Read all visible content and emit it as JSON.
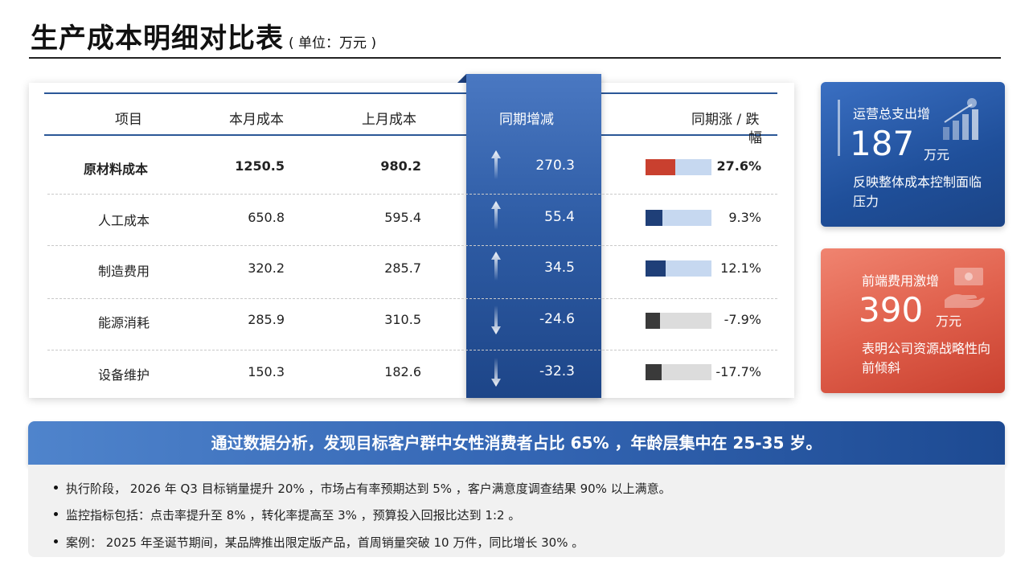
{
  "header": {
    "title": "生产成本明细对比表",
    "unit": "( 单位：万元 )"
  },
  "table": {
    "columns": [
      "项目",
      "本月成本",
      "上月成本",
      "同期增减",
      "同期涨 / 跌",
      "幅"
    ],
    "rows": [
      {
        "item": "原材料成本",
        "current": "1250.5",
        "previous": "980.2",
        "change": "270.3",
        "pct": "27.6%",
        "ratio": 0.45,
        "direction": "up",
        "bar_color": "#c9402f",
        "bold": true
      },
      {
        "item": "人工成本",
        "current": "650.8",
        "previous": "595.4",
        "change": "55.4",
        "pct": "9.3%",
        "ratio": 0.25,
        "direction": "up",
        "bar_color": "#1f3f78",
        "bold": false
      },
      {
        "item": "制造费用",
        "current": "320.2",
        "previous": "285.7",
        "change": "34.5",
        "pct": "12.1%",
        "ratio": 0.31,
        "direction": "up",
        "bar_color": "#1f3f78",
        "bold": false
      },
      {
        "item": "能源消耗",
        "current": "285.9",
        "previous": "310.5",
        "change": "-24.6",
        "pct": "-7.9%",
        "ratio": 0.22,
        "direction": "down",
        "bar_color": "#3a3a3a",
        "bold": false
      },
      {
        "item": "设备维护",
        "current": "150.3",
        "previous": "182.6",
        "change": "-32.3",
        "pct": "-17.7%",
        "ratio": 0.24,
        "direction": "down",
        "bar_color": "#3a3a3a",
        "bold": false
      }
    ],
    "colors": {
      "bar_track_positive": "#c6d8f0",
      "bar_track_negative": "#dcdcdc",
      "accent_blue": "#2b5797"
    }
  },
  "cards": [
    {
      "label": "运营总支出增",
      "number": "187",
      "unit": "万元",
      "desc": "反映整体成本控制面临压力",
      "icon": "growth-chart-icon"
    },
    {
      "label": "前端费用激增",
      "number": "390",
      "unit": "万元",
      "desc": "表明公司资源战略性向前倾斜",
      "icon": "hand-money-icon"
    }
  ],
  "banner": {
    "text": "通过数据分析，发现目标客户群中女性消费者占比 65% ，年龄层集中在 25-35 岁。"
  },
  "notes": [
    "执行阶段， 2026 年 Q3 目标销量提升 20% ，市场占有率预期达到 5% ，客户满意度调查结果 90% 以上满意。",
    "监控指标包括：点击率提升至 8% ，转化率提高至 3% ，预算投入回报比达到 1:2 。",
    "案例： 2025 年圣诞节期间，某品牌推出限定版产品，首周销量突破 10 万件，同比增长 30% 。"
  ]
}
